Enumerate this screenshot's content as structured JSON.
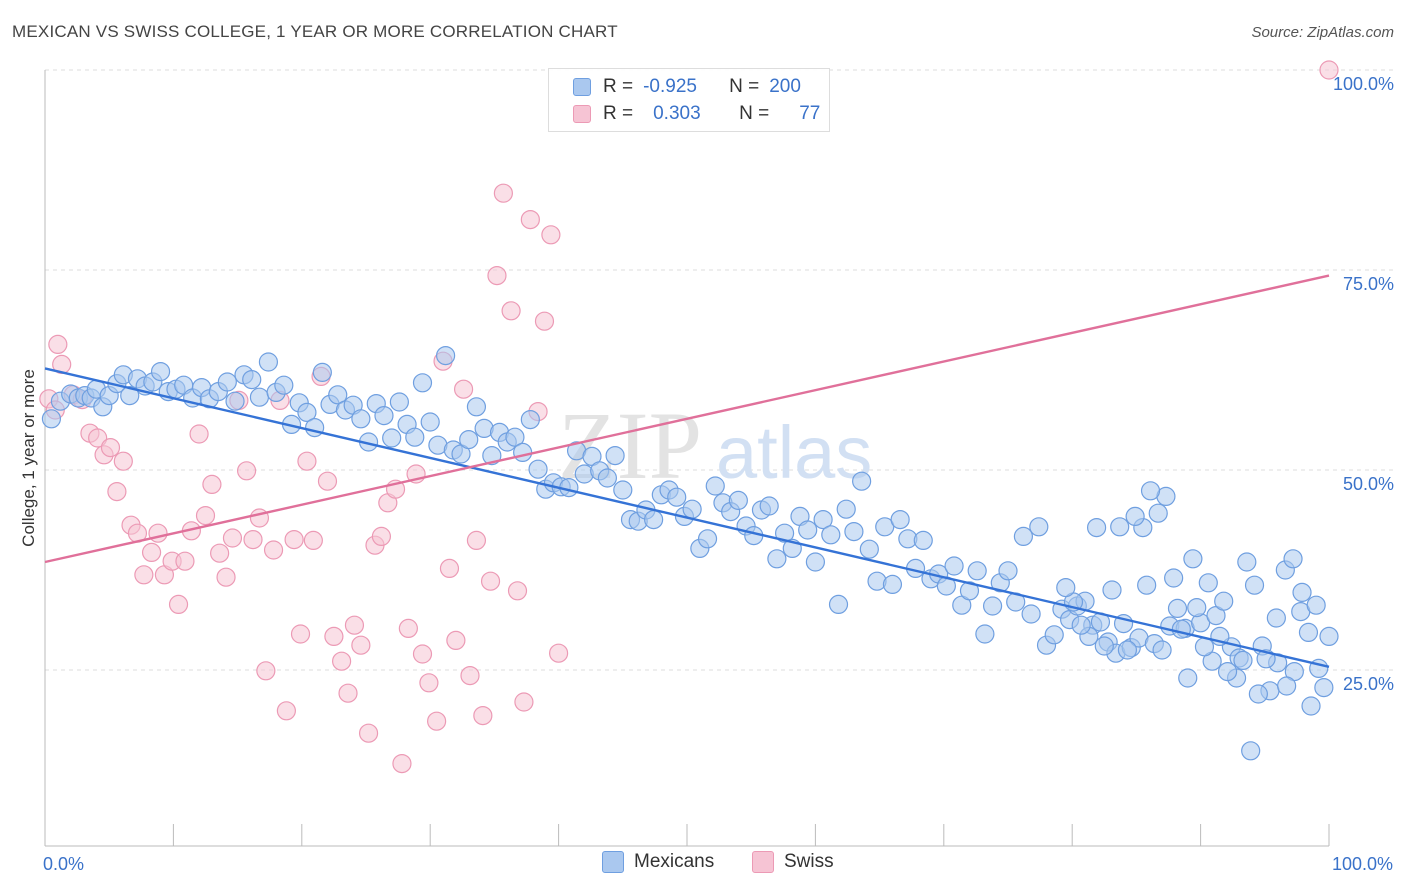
{
  "title": "MEXICAN VS SWISS COLLEGE, 1 YEAR OR MORE CORRELATION CHART",
  "source": "Source: ZipAtlas.com",
  "watermark": {
    "zip": "ZIP",
    "atlas": "atlas"
  },
  "legend_top": {
    "rows": [
      {
        "r_label": "R =",
        "r_value": "-0.925",
        "n_label": "N =",
        "n_value": "200",
        "color": "#7fa9e3"
      },
      {
        "r_label": "R =",
        "r_value": "0.303",
        "n_label": "N =",
        "n_value": "77",
        "color": "#f0a0bb"
      }
    ]
  },
  "legend_bottom": [
    {
      "label": "Mexicans",
      "color": "#7fa9e3"
    },
    {
      "label": "Swiss",
      "color": "#f0a0bb"
    }
  ],
  "chart_data": {
    "type": "scatter",
    "title": "MEXICAN VS SWISS COLLEGE, 1 YEAR OR MORE CORRELATION CHART",
    "xlabel": "",
    "ylabel": "College, 1 year or more",
    "xlim": [
      0,
      100
    ],
    "ylim": [
      3,
      100
    ],
    "x_tick_labels": [
      "0.0%",
      "100.0%"
    ],
    "y_ticks": [
      25,
      50,
      75,
      100
    ],
    "y_tick_labels": [
      "25.0%",
      "50.0%",
      "75.0%",
      "100.0%"
    ],
    "grid": true,
    "legend_position": "top-center",
    "colors": {
      "mexicans_fill": "#aac8ef",
      "mexicans_stroke": "#6f9fe0",
      "mexicans_line": "#3573d6",
      "swiss_fill": "#f6c4d4",
      "swiss_stroke": "#ec9ab5",
      "swiss_line": "#e0709a"
    },
    "series": [
      {
        "name": "Mexicans",
        "trend": {
          "x": [
            0,
            100
          ],
          "y": [
            62.7,
            25.4
          ]
        },
        "points": [
          [
            0.5,
            56.4
          ],
          [
            1.2,
            58.6
          ],
          [
            2.0,
            59.5
          ],
          [
            2.6,
            59.0
          ],
          [
            3.1,
            59.3
          ],
          [
            3.6,
            59.0
          ],
          [
            4.0,
            60.1
          ],
          [
            4.5,
            57.9
          ],
          [
            5.0,
            59.3
          ],
          [
            5.6,
            60.8
          ],
          [
            6.1,
            61.9
          ],
          [
            6.6,
            59.3
          ],
          [
            7.2,
            61.4
          ],
          [
            7.8,
            60.5
          ],
          [
            8.4,
            61.0
          ],
          [
            9.0,
            62.3
          ],
          [
            9.6,
            59.8
          ],
          [
            10.2,
            60.1
          ],
          [
            10.8,
            60.6
          ],
          [
            11.5,
            59.0
          ],
          [
            12.2,
            60.3
          ],
          [
            12.8,
            58.9
          ],
          [
            13.5,
            59.8
          ],
          [
            14.2,
            61.0
          ],
          [
            14.8,
            58.6
          ],
          [
            15.5,
            61.9
          ],
          [
            16.1,
            61.3
          ],
          [
            16.7,
            59.1
          ],
          [
            17.4,
            63.5
          ],
          [
            18.0,
            59.7
          ],
          [
            18.6,
            60.6
          ],
          [
            19.2,
            55.7
          ],
          [
            19.8,
            58.4
          ],
          [
            20.4,
            57.2
          ],
          [
            21.0,
            55.3
          ],
          [
            21.6,
            62.2
          ],
          [
            22.2,
            58.2
          ],
          [
            22.8,
            59.4
          ],
          [
            23.4,
            57.5
          ],
          [
            24.0,
            58.1
          ],
          [
            24.6,
            56.4
          ],
          [
            25.2,
            53.5
          ],
          [
            25.8,
            58.3
          ],
          [
            26.4,
            56.8
          ],
          [
            27.0,
            54.0
          ],
          [
            27.6,
            58.5
          ],
          [
            28.2,
            55.7
          ],
          [
            28.8,
            54.1
          ],
          [
            29.4,
            60.9
          ],
          [
            30.0,
            56.0
          ],
          [
            30.6,
            53.1
          ],
          [
            31.2,
            64.3
          ],
          [
            31.8,
            52.5
          ],
          [
            32.4,
            52.0
          ],
          [
            33.0,
            53.8
          ],
          [
            33.6,
            57.9
          ],
          [
            34.2,
            55.2
          ],
          [
            34.8,
            51.8
          ],
          [
            35.4,
            54.7
          ],
          [
            36.0,
            53.5
          ],
          [
            36.6,
            54.1
          ],
          [
            37.2,
            52.2
          ],
          [
            37.8,
            56.3
          ],
          [
            38.4,
            50.1
          ],
          [
            39.0,
            47.6
          ],
          [
            39.6,
            48.4
          ],
          [
            40.2,
            47.9
          ],
          [
            40.8,
            47.8
          ],
          [
            41.4,
            52.4
          ],
          [
            42.0,
            49.5
          ],
          [
            42.6,
            51.7
          ],
          [
            43.2,
            49.9
          ],
          [
            43.8,
            49.0
          ],
          [
            44.4,
            51.8
          ],
          [
            45.0,
            47.5
          ],
          [
            45.6,
            43.8
          ],
          [
            46.2,
            43.6
          ],
          [
            46.8,
            45.0
          ],
          [
            47.4,
            43.8
          ],
          [
            48.0,
            46.9
          ],
          [
            48.6,
            47.5
          ],
          [
            49.2,
            46.6
          ],
          [
            49.8,
            44.2
          ],
          [
            50.4,
            45.1
          ],
          [
            51.0,
            40.2
          ],
          [
            51.6,
            41.4
          ],
          [
            52.2,
            48.0
          ],
          [
            52.8,
            45.9
          ],
          [
            53.4,
            44.8
          ],
          [
            54.0,
            46.2
          ],
          [
            54.6,
            43.0
          ],
          [
            55.2,
            41.8
          ],
          [
            55.8,
            45.0
          ],
          [
            56.4,
            45.5
          ],
          [
            57.0,
            38.9
          ],
          [
            57.6,
            42.1
          ],
          [
            58.2,
            40.2
          ],
          [
            58.8,
            44.2
          ],
          [
            59.4,
            42.5
          ],
          [
            60.0,
            38.5
          ],
          [
            60.6,
            43.8
          ],
          [
            61.2,
            41.9
          ],
          [
            61.8,
            33.2
          ],
          [
            62.4,
            45.1
          ],
          [
            63.0,
            42.3
          ],
          [
            63.6,
            48.6
          ],
          [
            64.2,
            40.1
          ],
          [
            64.8,
            36.1
          ],
          [
            65.4,
            42.9
          ],
          [
            66.0,
            35.7
          ],
          [
            66.6,
            43.8
          ],
          [
            67.2,
            41.4
          ],
          [
            67.8,
            37.7
          ],
          [
            68.4,
            41.2
          ],
          [
            69.0,
            36.4
          ],
          [
            69.6,
            37.0
          ],
          [
            70.2,
            35.5
          ],
          [
            70.8,
            38.0
          ],
          [
            71.4,
            33.1
          ],
          [
            72.0,
            34.9
          ],
          [
            72.6,
            37.4
          ],
          [
            73.2,
            29.5
          ],
          [
            73.8,
            33.0
          ],
          [
            74.4,
            35.9
          ],
          [
            75.0,
            37.4
          ],
          [
            75.6,
            33.5
          ],
          [
            76.2,
            41.7
          ],
          [
            76.8,
            32.0
          ],
          [
            77.4,
            42.9
          ],
          [
            78.0,
            28.1
          ],
          [
            78.6,
            29.4
          ],
          [
            79.2,
            32.6
          ],
          [
            79.8,
            31.3
          ],
          [
            80.4,
            33.0
          ],
          [
            81.0,
            33.6
          ],
          [
            81.6,
            30.6
          ],
          [
            82.2,
            31.0
          ],
          [
            82.8,
            28.5
          ],
          [
            83.4,
            27.1
          ],
          [
            84.0,
            30.8
          ],
          [
            84.6,
            27.8
          ],
          [
            85.2,
            29.0
          ],
          [
            85.8,
            35.6
          ],
          [
            86.4,
            28.3
          ],
          [
            87.0,
            27.5
          ],
          [
            87.6,
            30.5
          ],
          [
            88.2,
            32.7
          ],
          [
            88.8,
            30.2
          ],
          [
            89.4,
            38.9
          ],
          [
            90.0,
            30.9
          ],
          [
            90.6,
            35.9
          ],
          [
            91.2,
            31.8
          ],
          [
            91.8,
            33.6
          ],
          [
            92.4,
            27.9
          ],
          [
            93.0,
            26.5
          ],
          [
            93.6,
            38.5
          ],
          [
            94.2,
            35.6
          ],
          [
            94.8,
            28.0
          ],
          [
            95.4,
            22.4
          ],
          [
            96.0,
            25.9
          ],
          [
            96.6,
            37.5
          ],
          [
            97.2,
            38.9
          ],
          [
            97.8,
            32.3
          ],
          [
            98.4,
            29.7
          ],
          [
            99.0,
            33.1
          ],
          [
            99.6,
            22.8
          ],
          [
            100.0,
            29.2
          ],
          [
            99.2,
            25.2
          ],
          [
            98.6,
            20.5
          ],
          [
            97.9,
            34.7
          ],
          [
            97.3,
            24.8
          ],
          [
            96.7,
            23.0
          ],
          [
            95.9,
            31.5
          ],
          [
            95.1,
            26.4
          ],
          [
            94.5,
            22.0
          ],
          [
            93.9,
            14.9
          ],
          [
            93.3,
            26.2
          ],
          [
            92.8,
            24.0
          ],
          [
            92.1,
            24.8
          ],
          [
            91.5,
            29.2
          ],
          [
            90.9,
            26.1
          ],
          [
            90.3,
            27.9
          ],
          [
            89.7,
            32.8
          ],
          [
            89.0,
            24.0
          ],
          [
            88.5,
            30.1
          ],
          [
            87.9,
            36.5
          ],
          [
            87.3,
            46.7
          ],
          [
            86.7,
            44.6
          ],
          [
            86.1,
            47.4
          ],
          [
            85.5,
            42.8
          ],
          [
            84.9,
            44.2
          ],
          [
            84.3,
            27.5
          ],
          [
            83.7,
            42.9
          ],
          [
            83.1,
            35.0
          ],
          [
            82.5,
            28.0
          ],
          [
            81.9,
            42.8
          ],
          [
            81.3,
            29.2
          ],
          [
            80.7,
            30.6
          ],
          [
            80.1,
            33.5
          ],
          [
            79.5,
            35.3
          ]
        ]
      },
      {
        "name": "Swiss",
        "trend": {
          "x": [
            0,
            100
          ],
          "y": [
            38.5,
            74.3
          ]
        },
        "points": [
          [
            0.3,
            58.9
          ],
          [
            0.8,
            57.5
          ],
          [
            1.0,
            65.7
          ],
          [
            1.3,
            63.2
          ],
          [
            2.2,
            59.4
          ],
          [
            2.9,
            58.8
          ],
          [
            3.5,
            54.6
          ],
          [
            4.1,
            54.0
          ],
          [
            4.6,
            51.9
          ],
          [
            5.1,
            52.8
          ],
          [
            5.6,
            47.3
          ],
          [
            6.1,
            51.1
          ],
          [
            6.7,
            43.1
          ],
          [
            7.2,
            42.1
          ],
          [
            7.7,
            36.9
          ],
          [
            8.3,
            39.7
          ],
          [
            8.8,
            42.1
          ],
          [
            9.3,
            36.9
          ],
          [
            9.9,
            38.6
          ],
          [
            10.4,
            33.2
          ],
          [
            10.9,
            38.6
          ],
          [
            11.4,
            42.4
          ],
          [
            12.0,
            54.5
          ],
          [
            12.5,
            44.3
          ],
          [
            13.0,
            48.2
          ],
          [
            13.6,
            39.6
          ],
          [
            14.1,
            36.6
          ],
          [
            14.6,
            41.5
          ],
          [
            15.1,
            58.7
          ],
          [
            15.7,
            49.9
          ],
          [
            16.2,
            41.3
          ],
          [
            16.7,
            44.0
          ],
          [
            17.2,
            24.9
          ],
          [
            17.8,
            40.0
          ],
          [
            18.3,
            58.7
          ],
          [
            18.8,
            19.9
          ],
          [
            19.4,
            41.3
          ],
          [
            19.9,
            29.5
          ],
          [
            20.4,
            51.1
          ],
          [
            20.9,
            41.2
          ],
          [
            21.5,
            61.7
          ],
          [
            22.0,
            48.6
          ],
          [
            22.5,
            29.2
          ],
          [
            23.1,
            26.1
          ],
          [
            23.6,
            22.1
          ],
          [
            24.1,
            30.6
          ],
          [
            24.6,
            28.1
          ],
          [
            25.2,
            17.1
          ],
          [
            25.7,
            40.6
          ],
          [
            26.2,
            41.7
          ],
          [
            26.7,
            45.9
          ],
          [
            27.3,
            47.6
          ],
          [
            27.8,
            13.3
          ],
          [
            28.3,
            30.2
          ],
          [
            28.9,
            49.5
          ],
          [
            29.4,
            27.0
          ],
          [
            29.9,
            23.4
          ],
          [
            30.5,
            18.6
          ],
          [
            31.0,
            63.6
          ],
          [
            31.5,
            37.7
          ],
          [
            32.0,
            28.7
          ],
          [
            32.6,
            60.1
          ],
          [
            33.1,
            24.3
          ],
          [
            33.6,
            41.2
          ],
          [
            34.1,
            19.3
          ],
          [
            34.7,
            36.1
          ],
          [
            35.2,
            74.3
          ],
          [
            35.7,
            84.6
          ],
          [
            36.3,
            69.9
          ],
          [
            36.8,
            34.9
          ],
          [
            37.3,
            21.0
          ],
          [
            37.8,
            81.3
          ],
          [
            38.4,
            57.3
          ],
          [
            38.9,
            68.6
          ],
          [
            39.4,
            79.4
          ],
          [
            40.0,
            27.1
          ],
          [
            100.0,
            100.0
          ]
        ]
      }
    ]
  }
}
